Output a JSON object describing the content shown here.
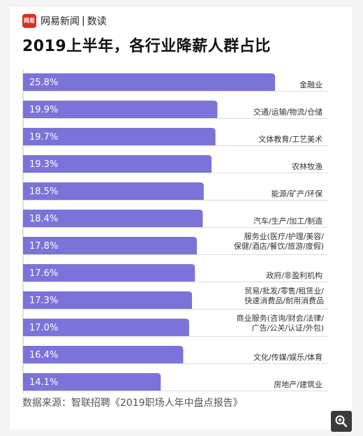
{
  "header": {
    "logo_text": "网易",
    "brand_name": "网易新闻",
    "separator": "|",
    "section_name": "数读",
    "title": "2019上半年，各行业降薪人群占比"
  },
  "chart_data": {
    "type": "bar",
    "orientation": "horizontal",
    "title": "2019上半年，各行业降薪人群占比",
    "unit": "%",
    "xlim": [
      0,
      25.8
    ],
    "grid": false,
    "legend": "none",
    "bar_color": "#7b73d9",
    "categories": [
      [
        "金融业"
      ],
      [
        "交通/运输/物流/仓储"
      ],
      [
        "文体教育/工艺美术"
      ],
      [
        "农林牧渔"
      ],
      [
        "能源/矿产/环保"
      ],
      [
        "汽车/生产/加工/制造"
      ],
      [
        "服务业(医疗/护理/美容/",
        "保健/酒店/餐饮/旅游/度假)"
      ],
      [
        "政府/非盈利机构"
      ],
      [
        "贸易/批发/零售/租赁业/",
        "快速消费品/耐用消费品"
      ],
      [
        "商业服务(咨询/财会/法律/",
        "广告/公关/认证/外包)"
      ],
      [
        "文化/传媒/娱乐/体育"
      ],
      [
        "房地产/建筑业"
      ]
    ],
    "values": [
      25.8,
      19.9,
      19.7,
      19.3,
      18.5,
      18.4,
      17.8,
      17.6,
      17.3,
      17.0,
      16.4,
      14.1
    ],
    "value_labels": [
      "25.8%",
      "19.9%",
      "19.7%",
      "19.3%",
      "18.5%",
      "18.4%",
      "17.8%",
      "17.6%",
      "17.3%",
      "17.0%",
      "16.4%",
      "14.1%"
    ]
  },
  "footer": {
    "source": "数据来源：智联招聘《2019职场人年中盘点报告》"
  },
  "zoom_button": {
    "icon": "zoom-in-icon"
  },
  "colors": {
    "bar": "#7b73d9",
    "bar_track_line": "#dcdcdc",
    "logo": "#d7301f",
    "zoom_button": "#3a3a3a"
  }
}
